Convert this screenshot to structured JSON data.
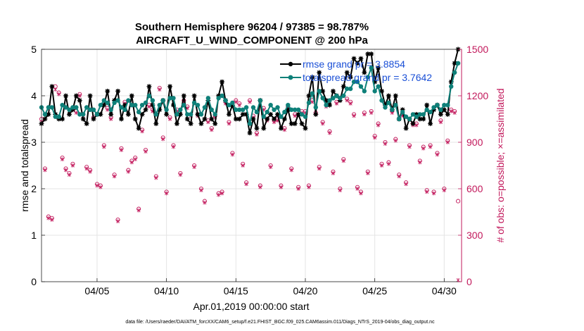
{
  "chart_data": {
    "type": "line",
    "title": "Southern Hemisphere 96204 / 97385 = 98.787%",
    "subtitle": "AIRCRAFT_U_WIND_COMPONENT @ 200 hPa",
    "xlabel": "Apr.01,2019 00:00:00 start",
    "ylabel": "rmse and totalspread",
    "ylabel_right": "# of obs: o=possible; ×=assimilated",
    "footnote": "data file: /Users/raeder/DAI/ATM_forcXX/CAM6_setup/f.e21.FHIST_BGC.f09_025.CAM6assim.011/Diags_NTrS_2019-04/obs_diag_output.nc",
    "xlim": [
      1.0,
      31.25
    ],
    "ylim": [
      0,
      5
    ],
    "ylim_right": [
      0,
      1500
    ],
    "x_ticks": [
      5,
      10,
      15,
      20,
      25,
      30
    ],
    "x_tick_labels": [
      "04/05",
      "04/10",
      "04/15",
      "04/20",
      "04/25",
      "04/30"
    ],
    "y_ticks": [
      0,
      1,
      2,
      3,
      4,
      5
    ],
    "y_tick_labels": [
      "0",
      "1",
      "2",
      "3",
      "4",
      "5"
    ],
    "y_right_ticks": [
      0,
      300,
      600,
      900,
      1200,
      1500
    ],
    "y_right_tick_labels": [
      "0",
      "300",
      "600",
      "900",
      "1200",
      "1500"
    ],
    "grid": true,
    "legend_position": "top-right",
    "x": [
      1.0,
      1.25,
      1.5,
      1.75,
      2.0,
      2.25,
      2.5,
      2.75,
      3.0,
      3.25,
      3.5,
      3.75,
      4.0,
      4.25,
      4.5,
      4.75,
      5.0,
      5.25,
      5.5,
      5.75,
      6.0,
      6.25,
      6.5,
      6.75,
      7.0,
      7.25,
      7.5,
      7.75,
      8.0,
      8.25,
      8.5,
      8.75,
      9.0,
      9.25,
      9.5,
      9.75,
      10.0,
      10.25,
      10.5,
      10.75,
      11.0,
      11.25,
      11.5,
      11.75,
      12.0,
      12.25,
      12.5,
      12.75,
      13.0,
      13.25,
      13.5,
      13.75,
      14.0,
      14.25,
      14.5,
      14.75,
      15.0,
      15.25,
      15.5,
      15.75,
      16.0,
      16.25,
      16.5,
      16.75,
      17.0,
      17.25,
      17.5,
      17.75,
      18.0,
      18.25,
      18.5,
      18.75,
      19.0,
      19.25,
      19.5,
      19.75,
      20.0,
      20.25,
      20.5,
      20.75,
      21.0,
      21.25,
      21.5,
      21.75,
      22.0,
      22.25,
      22.5,
      22.75,
      23.0,
      23.25,
      23.5,
      23.75,
      24.0,
      24.25,
      24.5,
      24.75,
      25.0,
      25.25,
      25.5,
      25.75,
      26.0,
      26.25,
      26.5,
      26.75,
      27.0,
      27.25,
      27.5,
      27.75,
      28.0,
      28.25,
      28.5,
      28.75,
      29.0,
      29.25,
      29.5,
      29.75,
      30.0,
      30.25,
      30.5,
      30.75,
      31.0
    ],
    "series": [
      {
        "name": "rmse",
        "legend_label": "rmse     grand pr = 3.8854",
        "color": "#000000",
        "marker": "star",
        "values": [
          3.4,
          3.5,
          3.6,
          4.2,
          3.6,
          3.5,
          3.5,
          4.0,
          3.6,
          3.7,
          4.0,
          3.9,
          3.5,
          3.4,
          4.0,
          3.5,
          3.6,
          3.6,
          3.8,
          4.1,
          3.6,
          3.9,
          4.1,
          3.5,
          3.8,
          3.6,
          4.0,
          3.5,
          3.3,
          3.6,
          3.7,
          4.2,
          3.8,
          3.4,
          3.7,
          3.9,
          3.6,
          4.2,
          3.8,
          3.4,
          3.6,
          4.0,
          3.5,
          3.4,
          4.0,
          3.6,
          3.4,
          3.5,
          3.9,
          3.5,
          3.4,
          4.0,
          4.3,
          3.9,
          3.6,
          3.8,
          3.5,
          3.5,
          3.6,
          3.6,
          3.2,
          3.5,
          3.3,
          3.9,
          3.3,
          3.5,
          3.6,
          3.5,
          3.6,
          3.3,
          3.5,
          3.7,
          3.4,
          3.4,
          3.6,
          3.4,
          3.3,
          4.0,
          4.4,
          3.6,
          4.5,
          4.1,
          3.9,
          3.8,
          4.1,
          4.0,
          3.9,
          4.2,
          4.5,
          4.4,
          4.8,
          4.7,
          4.8,
          4.5,
          4.9,
          4.9,
          4.3,
          4.6,
          4.1,
          3.8,
          4.0,
          3.7,
          4.0,
          3.5,
          3.7,
          3.3,
          3.5,
          3.4,
          3.6,
          3.5,
          3.5,
          3.8,
          3.4,
          3.7,
          3.8,
          3.6,
          3.7,
          3.6,
          4.3,
          4.7,
          5.0
        ]
      },
      {
        "name": "totalspread",
        "legend_label": "totalspread grand pr = 3.7642",
        "color": "#0e8079",
        "marker": "circle",
        "values": [
          3.75,
          3.6,
          3.75,
          3.75,
          3.55,
          3.55,
          3.8,
          3.75,
          3.7,
          3.75,
          3.75,
          3.6,
          3.6,
          3.75,
          3.7,
          3.7,
          3.6,
          3.8,
          3.9,
          3.85,
          3.7,
          3.85,
          3.9,
          3.75,
          3.7,
          3.9,
          3.8,
          3.8,
          3.65,
          3.8,
          3.85,
          4.0,
          3.9,
          3.6,
          3.8,
          3.9,
          3.7,
          3.95,
          3.95,
          3.6,
          3.7,
          3.8,
          3.6,
          3.6,
          3.85,
          3.8,
          3.6,
          3.75,
          3.95,
          3.7,
          3.6,
          3.95,
          4.0,
          3.9,
          3.8,
          3.85,
          3.7,
          3.7,
          3.7,
          3.75,
          3.4,
          3.75,
          3.65,
          3.9,
          3.55,
          3.65,
          3.8,
          3.7,
          3.75,
          3.55,
          3.65,
          3.8,
          3.7,
          3.7,
          3.7,
          3.6,
          3.55,
          3.85,
          4.05,
          3.75,
          4.1,
          3.95,
          3.8,
          3.9,
          3.95,
          4.0,
          3.95,
          4.0,
          4.15,
          4.15,
          4.3,
          4.3,
          4.2,
          4.1,
          4.4,
          4.6,
          4.1,
          4.2,
          3.9,
          3.75,
          3.85,
          3.7,
          3.8,
          3.5,
          3.65,
          3.55,
          3.5,
          3.6,
          3.55,
          3.6,
          3.6,
          3.7,
          3.65,
          3.75,
          3.8,
          3.7,
          3.8,
          3.8,
          4.2,
          4.5,
          4.7
        ]
      },
      {
        "name": "obs possible",
        "legend_label": "o=possible",
        "color": "#c2185b",
        "marker": "circle-open",
        "axis": "right",
        "values": [
          1050,
          730,
          420,
          410,
          1260,
          1220,
          800,
          730,
          700,
          760,
          1100,
          1210,
          1080,
          740,
          720,
          1060,
          630,
          620,
          880,
          1120,
          1060,
          690,
          400,
          860,
          1160,
          720,
          780,
          800,
          470,
          980,
          850,
          1140,
          1110,
          680,
          1250,
          930,
          580,
          1060,
          880,
          1110,
          700,
          1170,
          1130,
          1080,
          750,
          1080,
          600,
          520,
          1040,
          990,
          1070,
          570,
          580,
          1160,
          1030,
          830,
          1170,
          1150,
          760,
          640,
          1170,
          1070,
          960,
          620,
          1120,
          1050,
          750,
          1040,
          1050,
          620,
          990,
          1130,
          730,
          1080,
          610,
          1100,
          1100,
          620,
          1170,
          1090,
          740,
          1030,
          1140,
          970,
          710,
          1160,
          600,
          790,
          1180,
          1160,
          1080,
          610,
          580,
          1090,
          710,
          1100,
          940,
          1020,
          760,
          900,
          770,
          1100,
          920,
          690,
          1080,
          640,
          880,
          1020,
          1020,
          780,
          870,
          590,
          880,
          580,
          830,
          1040,
          600,
          910,
          1110,
          1100,
          520
        ]
      },
      {
        "name": "obs assimilated",
        "legend_label": "×=assimilated",
        "color": "#c2185b",
        "marker": "star-thin",
        "axis": "right",
        "values": [
          1030,
          720,
          410,
          400,
          1240,
          1210,
          790,
          720,
          690,
          750,
          1090,
          1200,
          1070,
          730,
          710,
          1050,
          620,
          610,
          870,
          1110,
          1050,
          680,
          390,
          850,
          1150,
          710,
          770,
          790,
          460,
          970,
          840,
          1130,
          1100,
          670,
          1240,
          920,
          570,
          1050,
          870,
          1100,
          690,
          1160,
          1120,
          1070,
          740,
          1070,
          590,
          510,
          1030,
          980,
          1060,
          560,
          570,
          1150,
          1020,
          820,
          1160,
          1140,
          750,
          630,
          1160,
          1060,
          950,
          610,
          1110,
          1040,
          740,
          1030,
          1040,
          610,
          980,
          1120,
          720,
          1070,
          600,
          1090,
          1090,
          610,
          1160,
          1080,
          730,
          1020,
          1130,
          960,
          700,
          1150,
          590,
          780,
          1170,
          1150,
          1070,
          600,
          570,
          1080,
          700,
          1090,
          930,
          1010,
          750,
          890,
          760,
          1090,
          910,
          680,
          1070,
          630,
          870,
          1010,
          1010,
          770,
          860,
          580,
          870,
          570,
          820,
          1030,
          590,
          900,
          1100,
          1090,
          10
        ]
      }
    ]
  }
}
